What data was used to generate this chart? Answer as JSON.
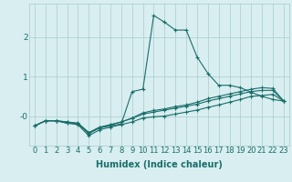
{
  "xlabel": "Humidex (Indice chaleur)",
  "background_color": "#d8eef0",
  "grid_color": "#aacccc",
  "line_color": "#1a6e6a",
  "x": [
    0,
    1,
    2,
    3,
    4,
    5,
    6,
    7,
    8,
    9,
    10,
    11,
    12,
    13,
    14,
    15,
    16,
    17,
    18,
    19,
    20,
    21,
    22,
    23
  ],
  "line1": [
    -0.25,
    -0.12,
    -0.12,
    -0.18,
    -0.18,
    -0.42,
    -0.3,
    -0.25,
    -0.2,
    0.62,
    0.68,
    2.55,
    2.38,
    2.18,
    2.18,
    1.5,
    1.08,
    0.78,
    0.78,
    0.72,
    0.6,
    0.5,
    0.42,
    0.38
  ],
  "line2": [
    -0.25,
    -0.12,
    -0.12,
    -0.18,
    -0.22,
    -0.5,
    -0.35,
    -0.28,
    -0.22,
    -0.15,
    -0.05,
    -0.02,
    0.0,
    0.05,
    0.1,
    0.15,
    0.22,
    0.28,
    0.35,
    0.42,
    0.5,
    0.52,
    0.55,
    0.38
  ],
  "line3": [
    -0.25,
    -0.12,
    -0.12,
    -0.15,
    -0.2,
    -0.45,
    -0.3,
    -0.22,
    -0.15,
    -0.06,
    0.05,
    0.1,
    0.15,
    0.2,
    0.25,
    0.3,
    0.38,
    0.44,
    0.5,
    0.56,
    0.62,
    0.65,
    0.65,
    0.38
  ],
  "line4": [
    -0.25,
    -0.12,
    -0.12,
    -0.15,
    -0.18,
    -0.42,
    -0.28,
    -0.22,
    -0.15,
    -0.05,
    0.08,
    0.14,
    0.18,
    0.24,
    0.28,
    0.35,
    0.44,
    0.5,
    0.56,
    0.62,
    0.68,
    0.72,
    0.7,
    0.38
  ],
  "ylim": [
    -0.75,
    2.85
  ],
  "xlim": [
    -0.5,
    23.5
  ],
  "ytick_vals": [
    0,
    1,
    2
  ],
  "ytick_labels": [
    "-0",
    "1",
    "2"
  ],
  "xtick_labels": [
    "0",
    "1",
    "2",
    "3",
    "4",
    "5",
    "6",
    "7",
    "8",
    "9",
    "10",
    "11",
    "12",
    "13",
    "14",
    "15",
    "16",
    "17",
    "18",
    "19",
    "20",
    "21",
    "22",
    "23"
  ],
  "xlabel_fontsize": 7,
  "tick_fontsize": 6.5
}
